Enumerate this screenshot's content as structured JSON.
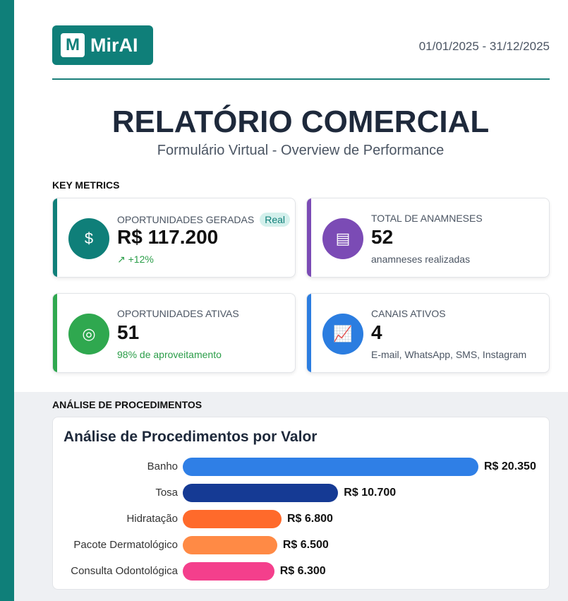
{
  "header": {
    "logo": "MirAI",
    "logo_mark": "M",
    "date_range": "01/01/2025 - 31/12/2025"
  },
  "title": "RELATÓRIO COMERCIAL",
  "subtitle": "Formulário Virtual - Overview de Performance",
  "key_metrics": {
    "heading": "KEY METRICS",
    "cards": [
      {
        "label": "OPORTUNIDADES GERADAS",
        "badge": "Real",
        "value": "R$ 117.200",
        "sub": "↗ +12%",
        "color": "#0f7f79",
        "icon": "dollar-icon"
      },
      {
        "label": "TOTAL DE ANAMNESES",
        "value": "52",
        "sub": "anamneses realizadas",
        "color": "#7b4bb5",
        "icon": "document-icon"
      },
      {
        "label": "OPORTUNIDADES ATIVAS",
        "value": "51",
        "sub": "98% de aproveitamento",
        "color": "#2fa84f",
        "icon": "target-icon"
      },
      {
        "label": "CANAIS ATIVOS",
        "value": "4",
        "sub": "E-mail, WhatsApp, SMS, Instagram",
        "color": "#2b7de0",
        "icon": "chart-icon"
      }
    ]
  },
  "analysis": {
    "heading": "ANÁLISE DE PROCEDIMENTOS"
  },
  "chart_data": {
    "type": "bar",
    "orientation": "horizontal",
    "title": "Análise de Procedimentos por Valor",
    "categories": [
      "Banho",
      "Tosa",
      "Hidratação",
      "Pacote Dermatológico",
      "Consulta Odontológica"
    ],
    "values": [
      20350,
      10700,
      6800,
      6500,
      6300
    ],
    "labels": [
      "R$ 20.350",
      "R$ 10.700",
      "R$ 6.800",
      "R$ 6.500",
      "R$ 6.300"
    ],
    "colors": [
      "#2f7fe6",
      "#153a94",
      "#ff6a2b",
      "#ff8a45",
      "#f43f8c"
    ]
  }
}
